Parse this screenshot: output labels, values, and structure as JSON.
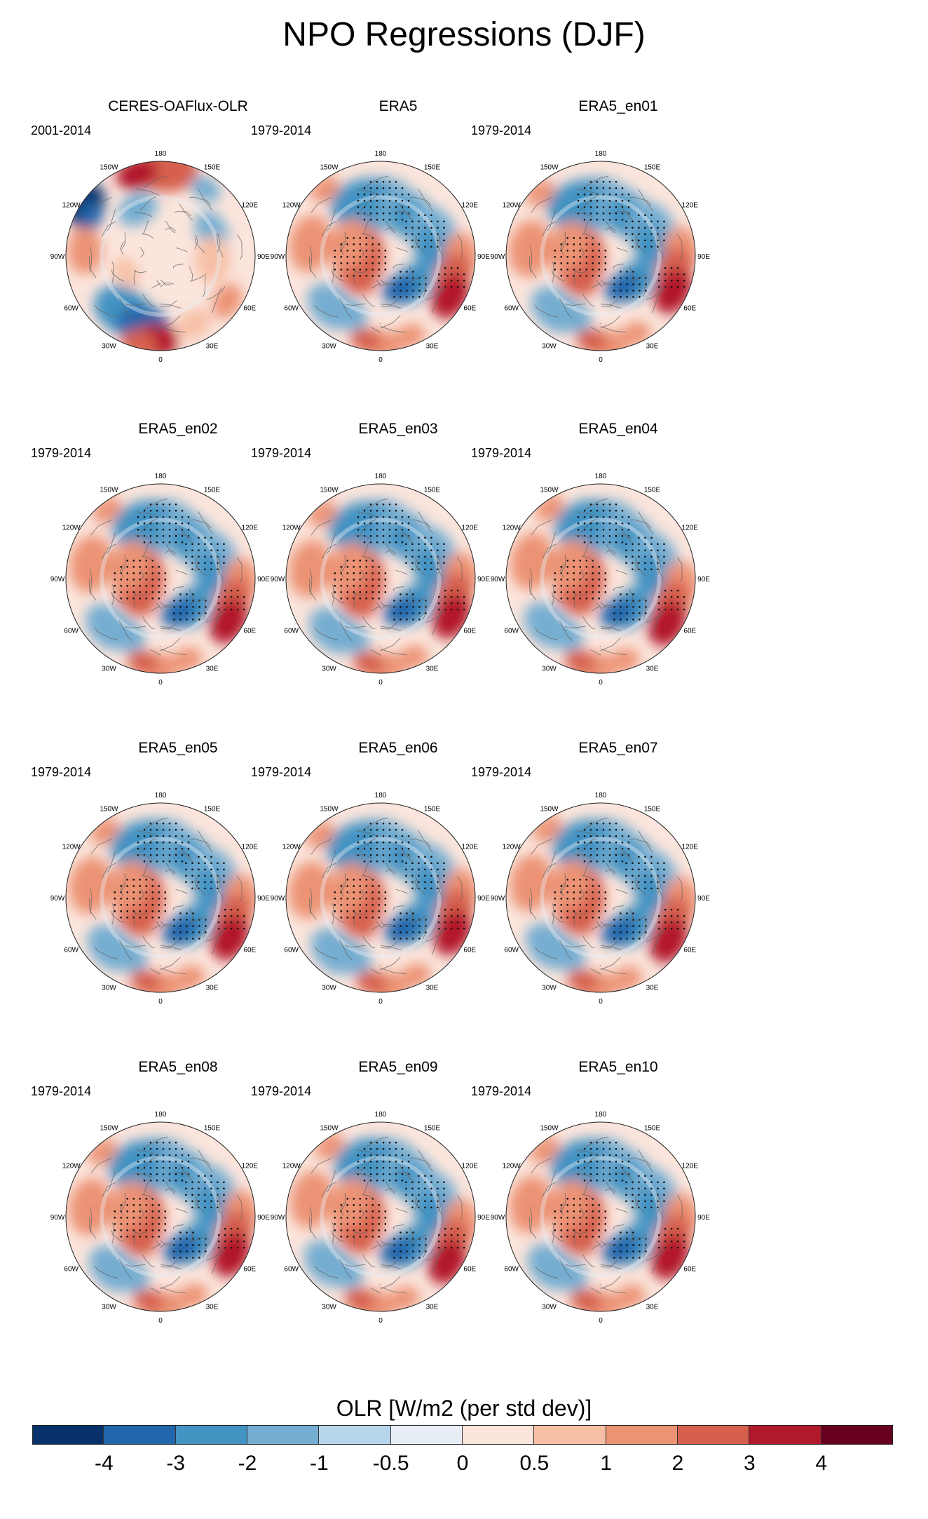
{
  "figure": {
    "title": "NPO Regressions (DJF)",
    "colorbar_title": "OLR [W/m2 (per std dev)]"
  },
  "longitude_labels": [
    "180",
    "150E",
    "120E",
    "90E",
    "60E",
    "30E",
    "0",
    "30W",
    "60W",
    "90W",
    "120W",
    "150W"
  ],
  "panels": [
    {
      "title": "CERES-OAFlux-OLR",
      "period": "2001-2014"
    },
    {
      "title": "ERA5",
      "period": "1979-2014"
    },
    {
      "title": "ERA5_en01",
      "period": "1979-2014"
    },
    {
      "title": "ERA5_en02",
      "period": "1979-2014"
    },
    {
      "title": "ERA5_en03",
      "period": "1979-2014"
    },
    {
      "title": "ERA5_en04",
      "period": "1979-2014"
    },
    {
      "title": "ERA5_en05",
      "period": "1979-2014"
    },
    {
      "title": "ERA5_en06",
      "period": "1979-2014"
    },
    {
      "title": "ERA5_en07",
      "period": "1979-2014"
    },
    {
      "title": "ERA5_en08",
      "period": "1979-2014"
    },
    {
      "title": "ERA5_en09",
      "period": "1979-2014"
    },
    {
      "title": "ERA5_en10",
      "period": "1979-2014"
    }
  ],
  "colorbar": {
    "colors": [
      "#08306b",
      "#2166ac",
      "#4393c3",
      "#74add1",
      "#b7d5ea",
      "#e8eef6",
      "#fbe5dc",
      "#f7c0a6",
      "#ec9374",
      "#d6604d",
      "#b2182b",
      "#67001f"
    ],
    "tick_labels": [
      "-4",
      "-3",
      "-2",
      "-1",
      "-0.5",
      "0",
      "0.5",
      "1",
      "2",
      "3",
      "4"
    ]
  }
}
